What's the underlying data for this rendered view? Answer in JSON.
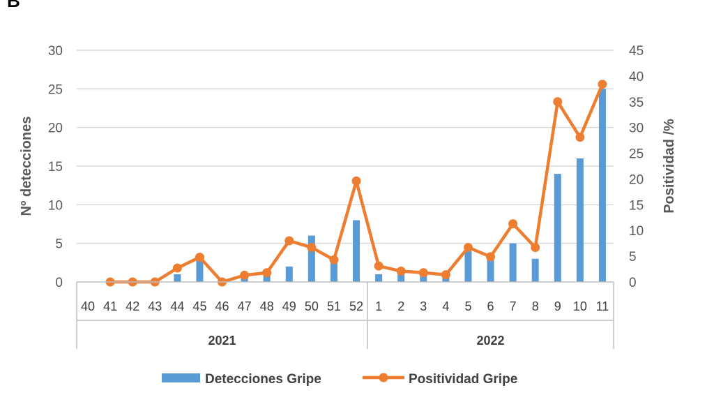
{
  "panel_label": "B",
  "chart_data": {
    "type": "bar+line",
    "categories": [
      "40",
      "41",
      "42",
      "43",
      "44",
      "45",
      "46",
      "47",
      "48",
      "49",
      "50",
      "51",
      "52",
      "1",
      "2",
      "3",
      "4",
      "5",
      "6",
      "7",
      "8",
      "9",
      "10",
      "11"
    ],
    "groups": [
      {
        "label": "2021",
        "start": 0,
        "end": 12
      },
      {
        "label": "2022",
        "start": 13,
        "end": 23
      }
    ],
    "series": [
      {
        "name": "Detecciones Gripe",
        "type": "bar",
        "axis": "left",
        "color": "#5b9bd5",
        "values": [
          0,
          0,
          0,
          0,
          1,
          3,
          0,
          1,
          1,
          2,
          6,
          3,
          8,
          1,
          1,
          1,
          1,
          4,
          3,
          5,
          3,
          14,
          16,
          25
        ]
      },
      {
        "name": "Positividad Gripe",
        "type": "line",
        "axis": "right",
        "color": "#ed7d31",
        "values": [
          null,
          0,
          0,
          0,
          2.7,
          4.8,
          0,
          1.3,
          1.8,
          8,
          6.7,
          4.3,
          19.6,
          3.1,
          2.1,
          1.8,
          1.4,
          6.7,
          4.9,
          11.3,
          6.7,
          35,
          28.1,
          38.4
        ]
      }
    ],
    "ylabel": "Nº detecciones",
    "y2label": "Positividad /%",
    "ylim": [
      0,
      30
    ],
    "yticks": [
      "0",
      "5",
      "10",
      "15",
      "20",
      "25",
      "30"
    ],
    "y2lim": [
      0,
      45
    ],
    "y2ticks": [
      "0",
      "5",
      "10",
      "15",
      "20",
      "25",
      "30",
      "35",
      "40",
      "45"
    ],
    "grid": true,
    "legend": "bottom"
  }
}
